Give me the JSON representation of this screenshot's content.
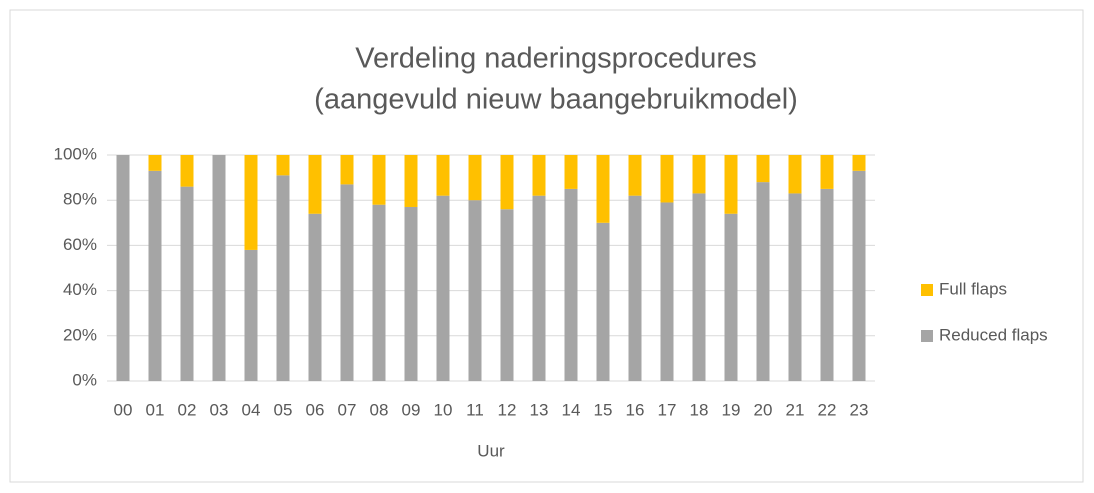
{
  "chart_data": {
    "type": "stacked_bar",
    "title": [
      "Verdeling naderingsprocedures",
      "(aangevuld nieuw baangebruikmodel)"
    ],
    "x_label": "Uur",
    "categories": [
      "00",
      "01",
      "02",
      "03",
      "04",
      "05",
      "06",
      "07",
      "08",
      "09",
      "10",
      "11",
      "12",
      "13",
      "14",
      "15",
      "16",
      "17",
      "18",
      "19",
      "20",
      "21",
      "22",
      "23"
    ],
    "series": [
      {
        "name": "Reduced flaps",
        "color": "#a5a5a5",
        "values": [
          100,
          93,
          86,
          100,
          58,
          91,
          74,
          87,
          78,
          77,
          82,
          80,
          76,
          82,
          85,
          70,
          82,
          79,
          83,
          74,
          88,
          83,
          85,
          93
        ]
      },
      {
        "name": "Full flaps",
        "color": "#ffc000",
        "values": [
          0,
          7,
          14,
          0,
          42,
          9,
          26,
          13,
          22,
          23,
          18,
          20,
          24,
          18,
          15,
          30,
          18,
          21,
          17,
          26,
          12,
          17,
          15,
          7
        ]
      }
    ],
    "ylim": [
      0,
      100
    ],
    "yticks": [
      {
        "value": 0,
        "label": "0%"
      },
      {
        "value": 20,
        "label": "20%"
      },
      {
        "value": 40,
        "label": "40%"
      },
      {
        "value": 60,
        "label": "60%"
      },
      {
        "value": 80,
        "label": "80%"
      },
      {
        "value": 100,
        "label": "100%"
      }
    ],
    "grid": true,
    "legend": "right"
  }
}
